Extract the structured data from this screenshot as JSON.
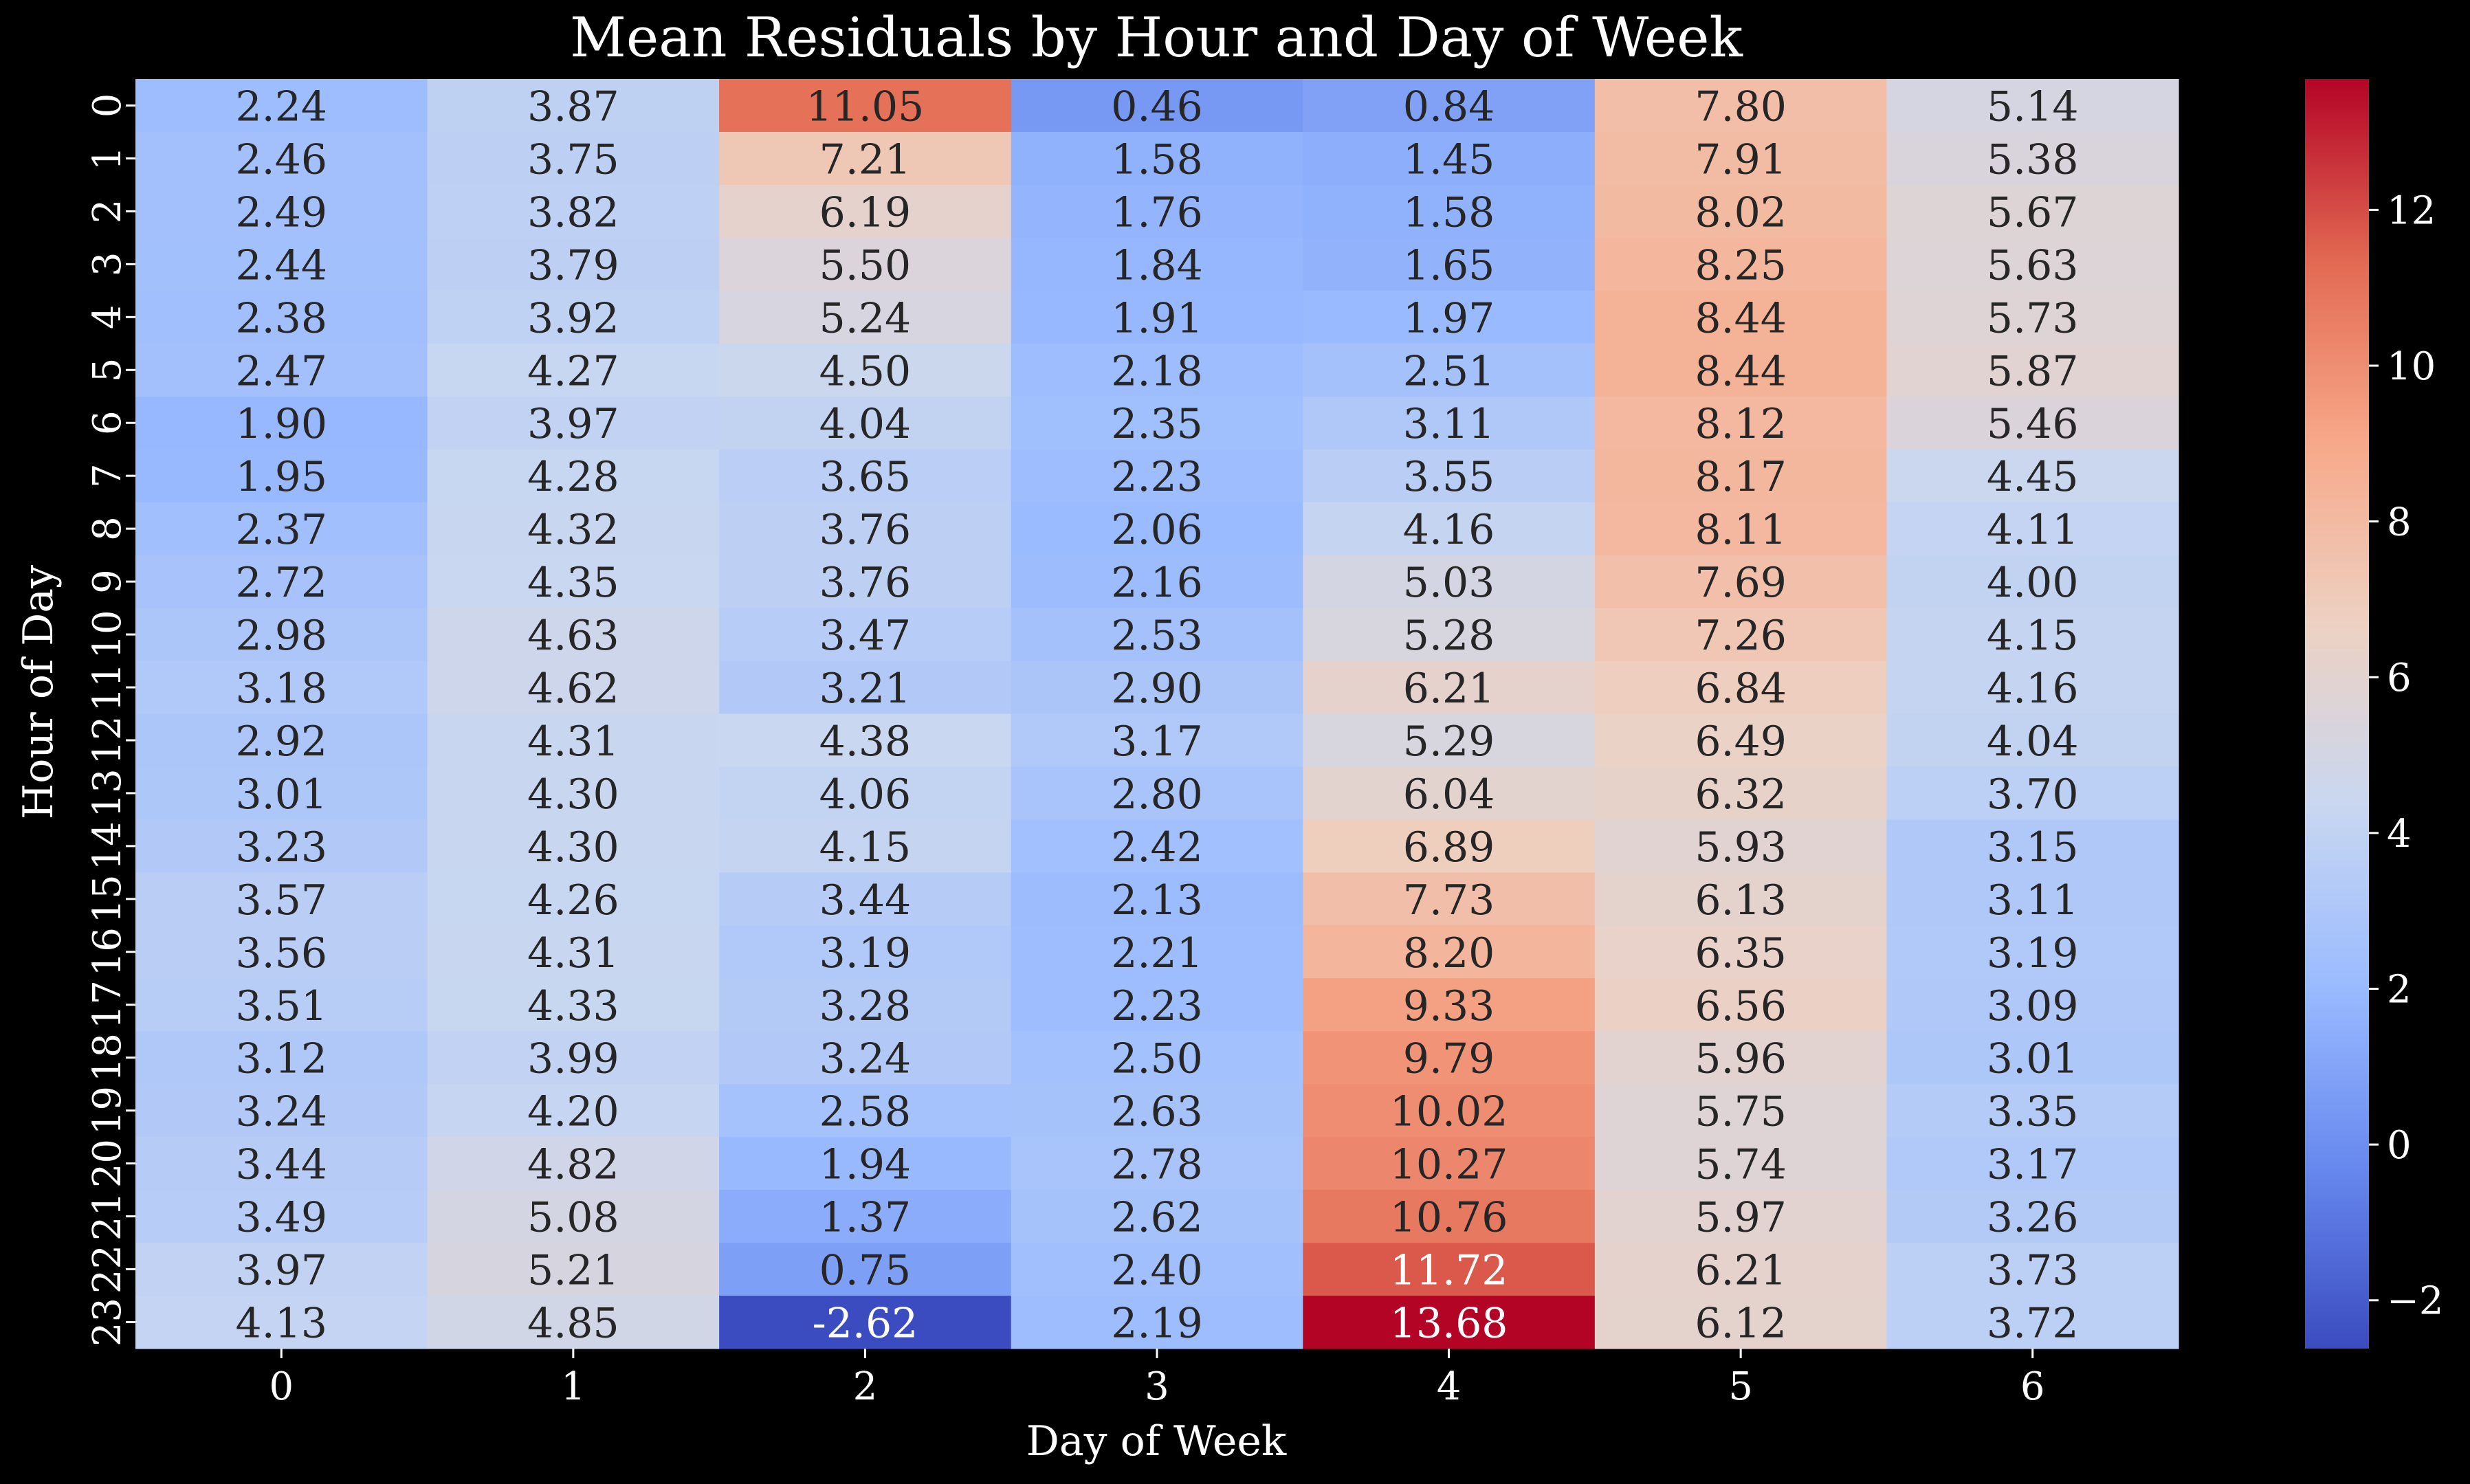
{
  "chart_data": {
    "type": "heatmap",
    "title": "Mean Residuals by Hour and Day of Week",
    "xlabel": "Day of Week",
    "ylabel": "Hour of Day",
    "x_categories": [
      "0",
      "1",
      "2",
      "3",
      "4",
      "5",
      "6"
    ],
    "y_categories": [
      "0",
      "1",
      "2",
      "3",
      "4",
      "5",
      "6",
      "7",
      "8",
      "9",
      "10",
      "11",
      "12",
      "13",
      "14",
      "15",
      "16",
      "17",
      "18",
      "19",
      "20",
      "21",
      "22",
      "23"
    ],
    "values": [
      [
        2.24,
        3.87,
        11.05,
        0.46,
        0.84,
        7.8,
        5.14
      ],
      [
        2.46,
        3.75,
        7.21,
        1.58,
        1.45,
        7.91,
        5.38
      ],
      [
        2.49,
        3.82,
        6.19,
        1.76,
        1.58,
        8.02,
        5.67
      ],
      [
        2.44,
        3.79,
        5.5,
        1.84,
        1.65,
        8.25,
        5.63
      ],
      [
        2.38,
        3.92,
        5.24,
        1.91,
        1.97,
        8.44,
        5.73
      ],
      [
        2.47,
        4.27,
        4.5,
        2.18,
        2.51,
        8.44,
        5.87
      ],
      [
        1.9,
        3.97,
        4.04,
        2.35,
        3.11,
        8.12,
        5.46
      ],
      [
        1.95,
        4.28,
        3.65,
        2.23,
        3.55,
        8.17,
        4.45
      ],
      [
        2.37,
        4.32,
        3.76,
        2.06,
        4.16,
        8.11,
        4.11
      ],
      [
        2.72,
        4.35,
        3.76,
        2.16,
        5.03,
        7.69,
        4.0
      ],
      [
        2.98,
        4.63,
        3.47,
        2.53,
        5.28,
        7.26,
        4.15
      ],
      [
        3.18,
        4.62,
        3.21,
        2.9,
        6.21,
        6.84,
        4.16
      ],
      [
        2.92,
        4.31,
        4.38,
        3.17,
        5.29,
        6.49,
        4.04
      ],
      [
        3.01,
        4.3,
        4.06,
        2.8,
        6.04,
        6.32,
        3.7
      ],
      [
        3.23,
        4.3,
        4.15,
        2.42,
        6.89,
        5.93,
        3.15
      ],
      [
        3.57,
        4.26,
        3.44,
        2.13,
        7.73,
        6.13,
        3.11
      ],
      [
        3.56,
        4.31,
        3.19,
        2.21,
        8.2,
        6.35,
        3.19
      ],
      [
        3.51,
        4.33,
        3.28,
        2.23,
        9.33,
        6.56,
        3.09
      ],
      [
        3.12,
        3.99,
        3.24,
        2.5,
        9.79,
        5.96,
        3.01
      ],
      [
        3.24,
        4.2,
        2.58,
        2.63,
        10.02,
        5.75,
        3.35
      ],
      [
        3.44,
        4.82,
        1.94,
        2.78,
        10.27,
        5.74,
        3.17
      ],
      [
        3.49,
        5.08,
        1.37,
        2.62,
        10.76,
        5.97,
        3.26
      ],
      [
        3.97,
        5.21,
        0.75,
        2.4,
        11.72,
        6.21,
        3.73
      ],
      [
        4.13,
        4.85,
        -2.62,
        2.19,
        13.68,
        6.12,
        3.72
      ]
    ],
    "value_format": "2 decimals",
    "colormap": "coolwarm",
    "color_range": [
      -2.62,
      13.68
    ],
    "colorbar": {
      "ticks": [
        "−2",
        "0",
        "2",
        "4",
        "6",
        "8",
        "10",
        "12"
      ],
      "tick_values": [
        -2,
        0,
        2,
        4,
        6,
        8,
        10,
        12
      ],
      "placement": "right"
    },
    "grid": false
  },
  "style": {
    "background": "#000000",
    "text_color": "#ffffff",
    "annotation_dark": "#262626",
    "annotation_light": "#ffffff",
    "colormap_stops": [
      "#3b4cc0",
      "#6788ee",
      "#9abbff",
      "#c9d7f0",
      "#edd1c2",
      "#f7a889",
      "#e26952",
      "#b40426"
    ]
  }
}
